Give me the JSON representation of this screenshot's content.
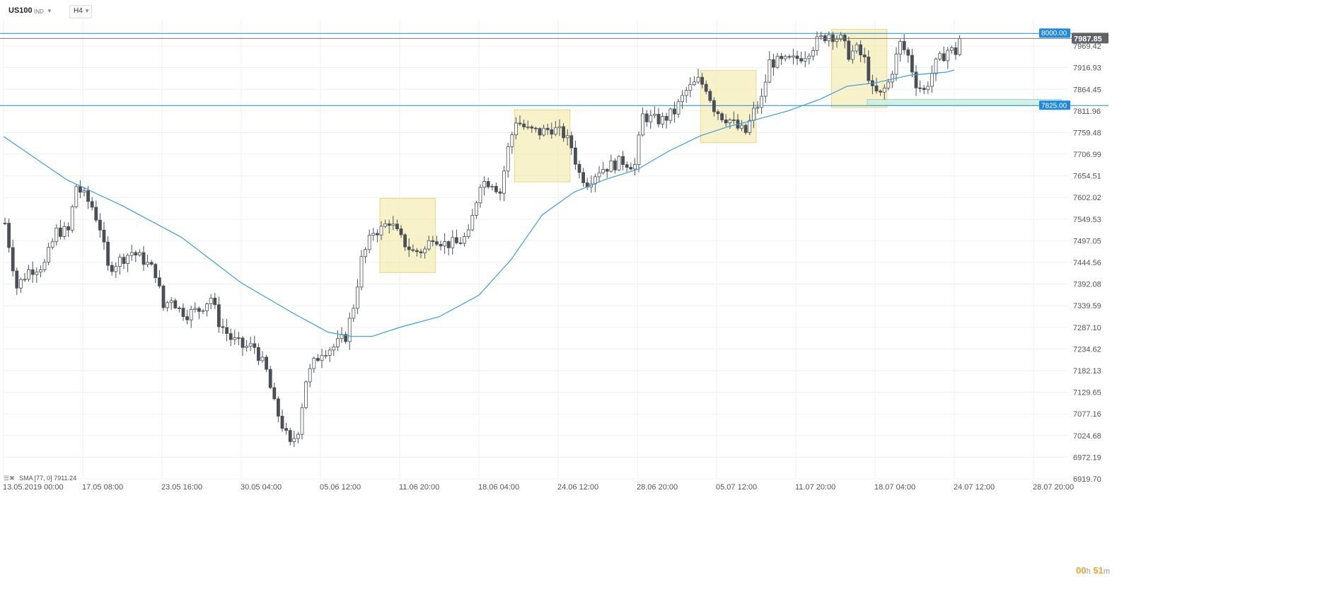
{
  "toolbar": {
    "symbol": "US100",
    "symbol_type": "IND",
    "timeframe": "H4"
  },
  "indicator": {
    "name": "SMA",
    "params": "[77, 0]",
    "value": "7911.24"
  },
  "timer": {
    "hours": "00",
    "h_unit": "h",
    "minutes": "51",
    "m_unit": "m"
  },
  "colors": {
    "up": "#ffffff",
    "down": "#4a4f57",
    "wick": "#4a4f57",
    "sma": "#3a9ee0",
    "level_line": "#1a8ccf",
    "label_bg": "#1e88e5",
    "zone_fill": "#f5edb8",
    "zone_stroke": "#e6d98a",
    "support_fill": "#c9ecdf",
    "grid": "#f0f0f0",
    "current_price_bg": "#5f6368"
  },
  "chart_data": {
    "type": "candlestick",
    "symbol": "US100",
    "timeframe": "H4",
    "y_range": [
      6919.7,
      8033.0
    ],
    "x_range": [
      0,
      280
    ],
    "y_ticks": [
      "7969.42",
      "7916.93",
      "7864.45",
      "7811.96",
      "7759.48",
      "7706.99",
      "7654.51",
      "7602.02",
      "7549.53",
      "7497.05",
      "7444.56",
      "7392.08",
      "7339.59",
      "7287.10",
      "7234.62",
      "7182.13",
      "7129.65",
      "7077.16",
      "7024.68",
      "6972.19",
      "6919.70"
    ],
    "x_ticks": [
      {
        "bar": 0,
        "label": "13.05.2019  00:00"
      },
      {
        "bar": 20,
        "label": "17.05  08:00"
      },
      {
        "bar": 40,
        "label": "23.05  16:00"
      },
      {
        "bar": 60,
        "label": "30.05  04:00"
      },
      {
        "bar": 80,
        "label": "05.06  12:00"
      },
      {
        "bar": 100,
        "label": "11.06  20:00"
      },
      {
        "bar": 120,
        "label": "18.06  04:00"
      },
      {
        "bar": 140,
        "label": "24.06  12:00"
      },
      {
        "bar": 160,
        "label": "28.06  20:00"
      },
      {
        "bar": 180,
        "label": "05.07  12:00"
      },
      {
        "bar": 200,
        "label": "11.07  20:00"
      },
      {
        "bar": 220,
        "label": "18.07  04:00"
      },
      {
        "bar": 240,
        "label": "24.07  12:00"
      },
      {
        "bar": 260,
        "label": "28.07  20:00"
      }
    ],
    "current_price": "7987.85",
    "current_price_value": 7987.85,
    "levels": [
      {
        "value": 8000.0,
        "label": "8000.00"
      },
      {
        "value": 7825.0,
        "label": "7825.00"
      }
    ],
    "zones": [
      {
        "x0": 95,
        "x1": 109,
        "y_hi": 7600,
        "y_lo": 7420
      },
      {
        "x0": 129,
        "x1": 143,
        "y_hi": 7815,
        "y_lo": 7640
      },
      {
        "x0": 176,
        "x1": 190,
        "y_hi": 7910,
        "y_lo": 7735
      },
      {
        "x0": 209,
        "x1": 223,
        "y_hi": 8010,
        "y_lo": 7820
      }
    ],
    "support_zone": {
      "x0": 218,
      "x1": 267,
      "y_hi": 7840,
      "y_lo": 7825
    },
    "sma_points": [
      [
        0,
        7750
      ],
      [
        16,
        7645
      ],
      [
        30,
        7582
      ],
      [
        45,
        7505
      ],
      [
        60,
        7395
      ],
      [
        73,
        7322
      ],
      [
        82,
        7275
      ],
      [
        88,
        7265
      ],
      [
        93,
        7265
      ],
      [
        100,
        7287
      ],
      [
        110,
        7313
      ],
      [
        120,
        7365
      ],
      [
        128,
        7450
      ],
      [
        136,
        7560
      ],
      [
        144,
        7615
      ],
      [
        152,
        7646
      ],
      [
        160,
        7670
      ],
      [
        168,
        7715
      ],
      [
        176,
        7752
      ],
      [
        183,
        7774
      ],
      [
        190,
        7791
      ],
      [
        198,
        7812
      ],
      [
        206,
        7840
      ],
      [
        213,
        7872
      ],
      [
        220,
        7880
      ],
      [
        229,
        7899
      ],
      [
        238,
        7906
      ],
      [
        240,
        7911
      ]
    ],
    "price_path": [
      [
        0,
        7540
      ],
      [
        3,
        7385
      ],
      [
        6,
        7425
      ],
      [
        10,
        7440
      ],
      [
        13,
        7520
      ],
      [
        16,
        7520
      ],
      [
        18,
        7630
      ],
      [
        22,
        7580
      ],
      [
        24,
        7530
      ],
      [
        26,
        7430
      ],
      [
        29,
        7450
      ],
      [
        32,
        7470
      ],
      [
        35,
        7450
      ],
      [
        38,
        7420
      ],
      [
        40,
        7335
      ],
      [
        42,
        7360
      ],
      [
        44,
        7330
      ],
      [
        46,
        7320
      ],
      [
        49,
        7330
      ],
      [
        52,
        7360
      ],
      [
        54,
        7300
      ],
      [
        57,
        7260
      ],
      [
        60,
        7240
      ],
      [
        63,
        7240
      ],
      [
        66,
        7180
      ],
      [
        68,
        7100
      ],
      [
        70,
        7050
      ],
      [
        72,
        7000
      ],
      [
        74,
        7040
      ],
      [
        76,
        7160
      ],
      [
        78,
        7200
      ],
      [
        80,
        7230
      ],
      [
        83,
        7240
      ],
      [
        86,
        7265
      ],
      [
        88,
        7340
      ],
      [
        90,
        7450
      ],
      [
        93,
        7520
      ],
      [
        95,
        7525
      ],
      [
        97,
        7545
      ],
      [
        100,
        7500
      ],
      [
        103,
        7470
      ],
      [
        106,
        7475
      ],
      [
        108,
        7510
      ],
      [
        111,
        7490
      ],
      [
        114,
        7490
      ],
      [
        117,
        7510
      ],
      [
        120,
        7640
      ],
      [
        123,
        7640
      ],
      [
        125,
        7615
      ],
      [
        127,
        7720
      ],
      [
        129,
        7790
      ],
      [
        132,
        7765
      ],
      [
        135,
        7760
      ],
      [
        138,
        7770
      ],
      [
        141,
        7755
      ],
      [
        143,
        7725
      ],
      [
        145,
        7660
      ],
      [
        147,
        7640
      ],
      [
        150,
        7670
      ],
      [
        153,
        7680
      ],
      [
        156,
        7690
      ],
      [
        159,
        7680
      ],
      [
        161,
        7800
      ],
      [
        164,
        7790
      ],
      [
        166,
        7790
      ],
      [
        169,
        7810
      ],
      [
        172,
        7860
      ],
      [
        175,
        7885
      ],
      [
        177,
        7870
      ],
      [
        179,
        7820
      ],
      [
        181,
        7800
      ],
      [
        183,
        7790
      ],
      [
        185,
        7770
      ],
      [
        187,
        7760
      ],
      [
        189,
        7810
      ],
      [
        191,
        7840
      ],
      [
        193,
        7930
      ],
      [
        196,
        7930
      ],
      [
        199,
        7935
      ],
      [
        202,
        7950
      ],
      [
        205,
        7980
      ],
      [
        208,
        8000
      ],
      [
        211,
        7985
      ],
      [
        213,
        7950
      ],
      [
        215,
        7960
      ],
      [
        217,
        7935
      ],
      [
        219,
        7860
      ],
      [
        221,
        7850
      ],
      [
        223,
        7880
      ],
      [
        226,
        7975
      ],
      [
        228,
        7945
      ],
      [
        230,
        7880
      ],
      [
        232,
        7860
      ],
      [
        235,
        7925
      ],
      [
        238,
        7960
      ],
      [
        240,
        7955
      ],
      [
        241,
        7988
      ]
    ]
  }
}
